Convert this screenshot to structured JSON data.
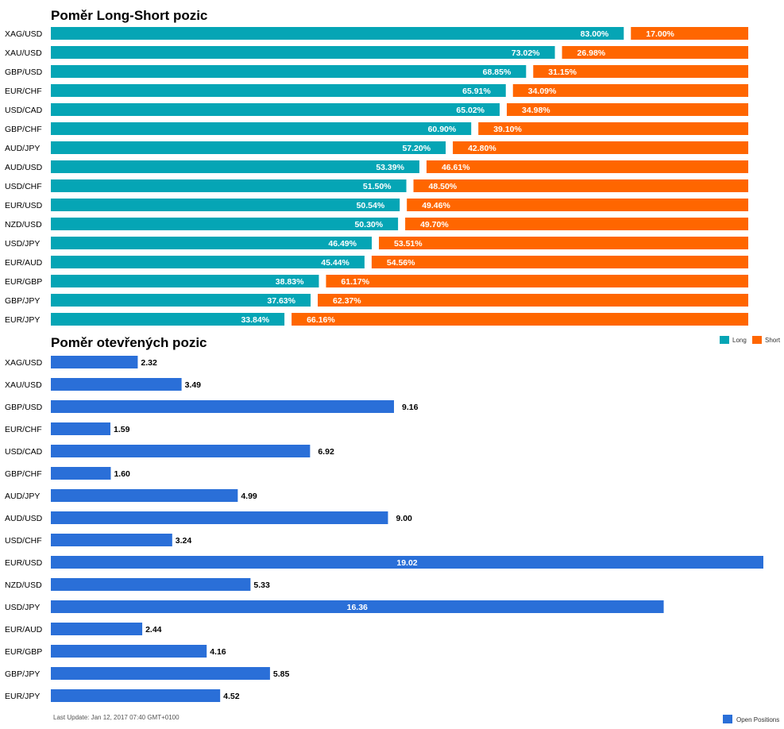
{
  "colors": {
    "long": "#05A5B5",
    "short": "#FF6600",
    "open": "#2A6FD8"
  },
  "chart_data": [
    {
      "type": "bar",
      "orientation": "horizontal",
      "stacked": true,
      "title": "Poměr Long-Short pozic",
      "categories": [
        "XAG/USD",
        "XAU/USD",
        "GBP/USD",
        "EUR/CHF",
        "USD/CAD",
        "GBP/CHF",
        "AUD/JPY",
        "AUD/USD",
        "USD/CHF",
        "EUR/USD",
        "NZD/USD",
        "USD/JPY",
        "EUR/AUD",
        "EUR/GBP",
        "GBP/JPY",
        "EUR/JPY"
      ],
      "series": [
        {
          "name": "Long",
          "values": [
            83.0,
            73.02,
            68.85,
            65.91,
            65.02,
            60.9,
            57.2,
            53.39,
            51.5,
            50.54,
            50.3,
            46.49,
            45.44,
            38.83,
            37.63,
            33.84
          ],
          "labels": [
            "83.00%",
            "73.02%",
            "68.85%",
            "65.91%",
            "65.02%",
            "60.90%",
            "57.20%",
            "53.39%",
            "51.50%",
            "50.54%",
            "50.30%",
            "46.49%",
            "45.44%",
            "38.83%",
            "37.63%",
            "33.84%"
          ]
        },
        {
          "name": "Short",
          "values": [
            17.0,
            26.98,
            31.15,
            34.09,
            34.98,
            39.1,
            42.8,
            46.61,
            48.5,
            49.46,
            49.7,
            53.51,
            54.56,
            61.17,
            62.37,
            66.16
          ],
          "labels": [
            "17.00%",
            "26.98%",
            "31.15%",
            "34.09%",
            "34.98%",
            "39.10%",
            "42.80%",
            "46.61%",
            "48.50%",
            "49.46%",
            "49.70%",
            "53.51%",
            "54.56%",
            "61.17%",
            "62.37%",
            "66.16%"
          ]
        }
      ],
      "xlim": [
        0,
        100
      ],
      "legend": "top-right"
    },
    {
      "type": "bar",
      "orientation": "horizontal",
      "title": "Poměr otevřených pozic",
      "categories": [
        "XAG/USD",
        "XAU/USD",
        "GBP/USD",
        "EUR/CHF",
        "USD/CAD",
        "GBP/CHF",
        "AUD/JPY",
        "AUD/USD",
        "USD/CHF",
        "EUR/USD",
        "NZD/USD",
        "USD/JPY",
        "EUR/AUD",
        "EUR/GBP",
        "GBP/JPY",
        "EUR/JPY"
      ],
      "series": [
        {
          "name": "Open Positions",
          "values": [
            2.32,
            3.49,
            9.16,
            1.59,
            6.92,
            1.6,
            4.99,
            9.0,
            3.24,
            19.02,
            5.33,
            16.36,
            2.44,
            4.16,
            5.85,
            4.52
          ],
          "labels": [
            "2.32",
            "3.49",
            "9.16",
            "1.59",
            "6.92",
            "1.60",
            "4.99",
            "9.00",
            "3.24",
            "19.02",
            "5.33",
            "16.36",
            "2.44",
            "4.16",
            "5.85",
            "4.52"
          ]
        }
      ],
      "xlim": [
        0,
        19.02
      ],
      "legend": "bottom-right",
      "footnote": "Last Update: Jan 12, 2017 07:40 GMT+0100"
    }
  ]
}
